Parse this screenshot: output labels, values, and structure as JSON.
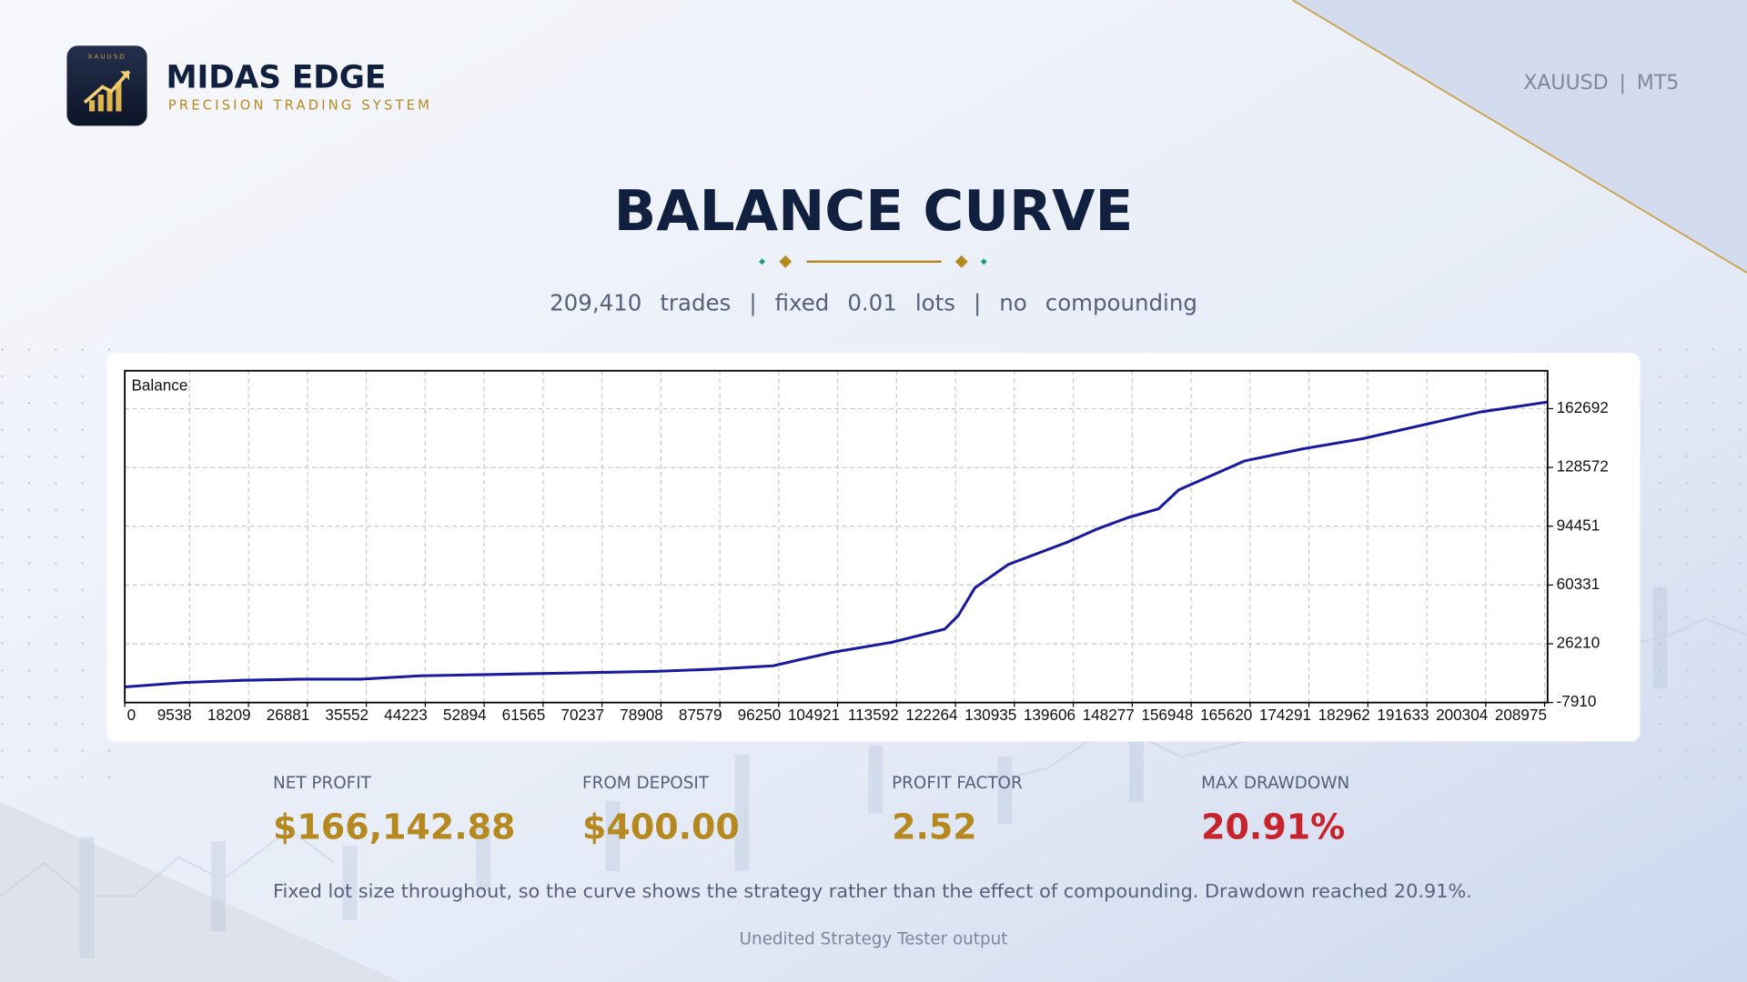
{
  "header": {
    "logo_badge": "XAUUSD",
    "brand": "MIDAS EDGE",
    "tagline": "PRECISION TRADING SYSTEM",
    "market": "XAUUSD | MT5"
  },
  "title": "BALANCE CURVE",
  "subtitle": "209,410 trades | fixed 0.01 lots | no compounding",
  "chart_data": {
    "type": "line",
    "x": [
      0,
      8691,
      17382,
      26073,
      34764,
      43455,
      52145,
      60836,
      69527,
      78220,
      86747,
      95437,
      99700,
      104127,
      112818,
      120690,
      122660,
      125120,
      130040,
      138730,
      143160,
      147580,
      152170,
      155130,
      160370,
      164800,
      173490,
      182180,
      190870,
      199560,
      209410
    ],
    "series": [
      {
        "name": "Balance",
        "color": "#1a1aa0",
        "values": [
          1130,
          3720,
          5010,
          5660,
          5660,
          7600,
          8250,
          8890,
          9540,
          10180,
          11480,
          13420,
          17290,
          21170,
          26990,
          34740,
          42500,
          58650,
          72220,
          85140,
          92900,
          99360,
          104530,
          115520,
          124570,
          132320,
          139430,
          145250,
          153000,
          160760,
          166543
        ]
      }
    ],
    "xlim": [
      0,
      209410
    ],
    "ylim": [
      -7910,
      184700
    ],
    "xticks": [
      0,
      9538,
      18209,
      26881,
      35552,
      44223,
      52894,
      61565,
      70237,
      78908,
      87579,
      96250,
      104921,
      113592,
      122264,
      130935,
      139606,
      148277,
      156948,
      165620,
      174291,
      182962,
      191633,
      200304,
      208975
    ],
    "yticks": [
      -7910,
      26210,
      60331,
      94451,
      128572,
      162692
    ],
    "grid": true
  },
  "stats": [
    {
      "label": "NET PROFIT",
      "value": "$166,142.88",
      "color": "#b5891f"
    },
    {
      "label": "FROM DEPOSIT",
      "value": "$400.00",
      "color": "#b5891f"
    },
    {
      "label": "PROFIT FACTOR",
      "value": "2.52",
      "color": "#b5891f"
    },
    {
      "label": "MAX DRAWDOWN",
      "value": "20.91%",
      "color": "#c8232c"
    }
  ],
  "caption": "Fixed lot size throughout, so the curve shows the strategy rather than the effect of compounding. Drawdown reached 20.91%.",
  "footer": "Unedited Strategy Tester output"
}
